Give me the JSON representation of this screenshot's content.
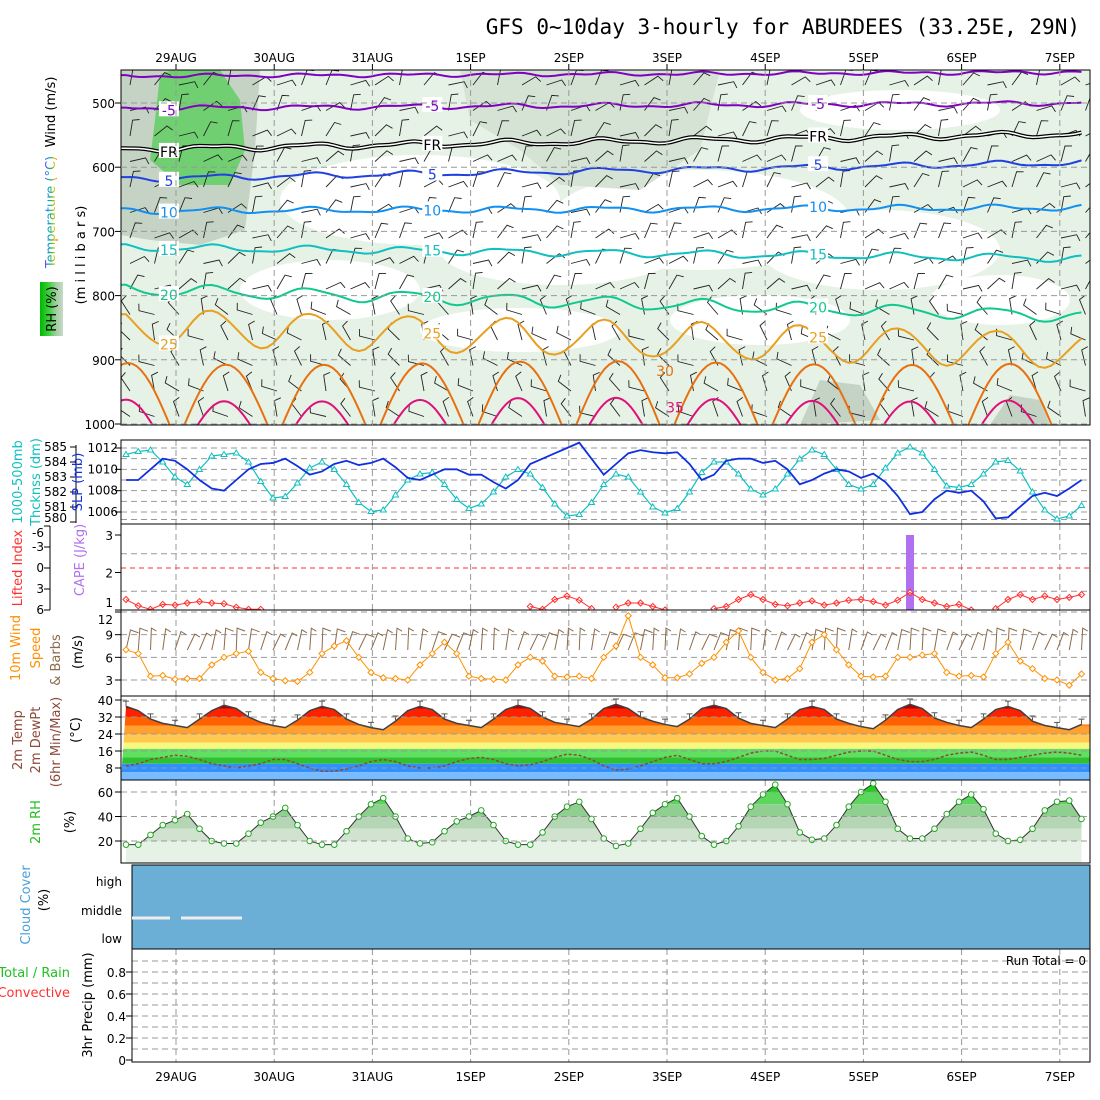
{
  "title": "GFS 0~10day 3-hourly for ABURDEES (33.25E, 29N)",
  "days": [
    "29AUG",
    "30AUG",
    "31AUG",
    "1SEP",
    "2SEP",
    "3SEP",
    "4SEP",
    "5SEP",
    "6SEP",
    "7SEP"
  ],
  "colors": {
    "temp_line": "#404040",
    "dewpoint": "#8b4a3a",
    "rh_marker": "#22aa22",
    "slp": "#1030e0",
    "thickness": "#10c0c0",
    "li": "#ff3030",
    "cape": "#b070f0",
    "wind_speed": "#ff9000",
    "barb": "#8b6b4a",
    "cloud": "#6baed6"
  },
  "upper": {
    "label_wind": "Wind (m/s)",
    "label_temp": "Temperature (°C)",
    "label_mb": "(m i l l i b a r s)",
    "label_rh": "RH (%)",
    "ticks": [
      "500",
      "600",
      "700",
      "800",
      "900",
      "1000"
    ]
  },
  "slp_panel": {
    "label_thick1": "1000-500mb",
    "label_thick2": "Thcknss (dm)",
    "label_slp": "SLP (mb)",
    "thick_ticks": [
      "585",
      "584",
      "583",
      "582",
      "581",
      "580"
    ],
    "slp_ticks": [
      "1012",
      "1010",
      "1008",
      "1006"
    ]
  },
  "cape_panel": {
    "label_li": "Lifted Index",
    "label_cape": "CAPE (J/kg)",
    "li_ticks": [
      "-6",
      "-3",
      "0",
      "3",
      "6"
    ],
    "cape_ticks": [
      "3",
      "2",
      "1"
    ]
  },
  "wind_panel": {
    "label1": "10m Wind",
    "label2": "Speed",
    "label3": "& Barbs",
    "label4": "(m/s)",
    "ticks": [
      "12",
      "9",
      "6",
      "3"
    ]
  },
  "temp_panel": {
    "label1": "2m Temp",
    "label2": "2m DewPt",
    "label3": "(6hr Min/Max)",
    "label4": "(°C)",
    "ticks": [
      "40",
      "32",
      "24",
      "16",
      "8"
    ]
  },
  "rh_panel": {
    "label1": "2m RH",
    "label2": "(%)",
    "ticks": [
      "60",
      "40",
      "20"
    ]
  },
  "cloud_panel": {
    "label1": "Cloud Cover",
    "label2": "(%)",
    "levels": [
      "high",
      "middle",
      "low"
    ]
  },
  "precip_panel": {
    "label_total": "Total / Rain",
    "label_conv": "Convective",
    "label_axis": "3hr Precip (mm)",
    "run_total": "Run Total = 0",
    "ticks": [
      "0.8",
      "0.6",
      "0.4",
      "0.2",
      "0"
    ]
  },
  "chart_data": {
    "type": "line",
    "title": "GFS 0~10day 3-hourly for ABURDEES (33.25E, 29N)",
    "x_start": "28AUG 12Z",
    "x_step_hours": 3,
    "contours": [
      {
        "label": "",
        "level": [
          458,
          452
        ],
        "color": "#8000c0",
        "amp": 2
      },
      {
        "label": "-5",
        "level": [
          508,
          500
        ],
        "color": "#8000c0",
        "amp": 3
      },
      {
        "label": "FR",
        "level": [
          572,
          548
        ],
        "color": "#000000",
        "amp": 4,
        "double": true
      },
      {
        "label": "5",
        "level": [
          618,
          593
        ],
        "color": "#2040e0",
        "amp": 4
      },
      {
        "label": "10",
        "level": [
          668,
          663
        ],
        "color": "#1090f0",
        "amp": 4
      },
      {
        "label": "15",
        "level": [
          725,
          742
        ],
        "color": "#10c0c0",
        "amp": 5
      },
      {
        "label": "20",
        "level": [
          790,
          832
        ],
        "color": "#10c890",
        "amp": 9
      },
      {
        "label": "25",
        "level": [
          848,
          885
        ],
        "color": "#e8a020",
        "amp": 28
      }
    ],
    "arches": [
      {
        "label": "30",
        "peak": 905,
        "color": "#e87010"
      },
      {
        "label": "35",
        "peak": 962,
        "color": "#e0107a"
      }
    ],
    "slp": [
      1009,
      1009,
      1010,
      1011,
      1010.8,
      1010,
      1009,
      1008.2,
      1008,
      1009,
      1010,
      1010.5,
      1010.6,
      1011,
      1010.3,
      1009.5,
      1009.8,
      1010.5,
      1010.8,
      1010.4,
      1010.6,
      1011,
      1010.2,
      1009.2,
      1009,
      1009.5,
      1010,
      1010,
      1009.5,
      1009.5,
      1008.8,
      1008.2,
      1009,
      1010.5,
      1011,
      1011.5,
      1012,
      1012.5,
      1011,
      1009.5,
      1010.5,
      1011.5,
      1011.8,
      1011.6,
      1011.5,
      1011.6,
      1010.5,
      1009,
      1009.5,
      1010.8,
      1011,
      1011,
      1010.6,
      1010.8,
      1010,
      1008.6,
      1009,
      1009.6,
      1010,
      1009.8,
      1009.2,
      1009.6,
      1008.8,
      1007.5,
      1005.8,
      1006,
      1007.2,
      1008,
      1007.8,
      1008,
      1007,
      1005.4,
      1005.5,
      1006.5,
      1007.5,
      1007.8,
      1007.5,
      1008.2,
      1009
    ],
    "thickness": [
      584.5,
      584.7,
      584.8,
      584,
      583,
      582.5,
      583.5,
      584.4,
      584.5,
      584.6,
      584,
      582.7,
      581.6,
      581.7,
      582.6,
      583.6,
      584,
      583.5,
      582.5,
      581.3,
      580.7,
      580.8,
      581.8,
      582.8,
      583.2,
      583.3,
      582.5,
      581.5,
      580.9,
      581.2,
      582,
      583,
      583.5,
      583.2,
      582.3,
      581.2,
      580.4,
      580.5,
      581.3,
      582.5,
      583.2,
      583,
      582,
      581,
      580.6,
      580.9,
      582,
      583.3,
      584,
      584,
      583.2,
      582.2,
      581.8,
      582.2,
      583.2,
      584.2,
      584.8,
      584.5,
      583.5,
      582.5,
      582.2,
      582.5,
      583.6,
      584.6,
      585,
      584.6,
      583.5,
      582.4,
      582.3,
      582.5,
      583.2,
      584,
      584.1,
      583.4,
      582,
      580.8,
      580.2,
      580.4,
      581.1
    ],
    "lifted_index": [
      4.5,
      5.4,
      5.9,
      5.2,
      5.3,
      5,
      4.8,
      5,
      5.1,
      5.6,
      5.9,
      5.9,
      null,
      null,
      null,
      null,
      null,
      null,
      null,
      null,
      null,
      null,
      null,
      null,
      null,
      null,
      null,
      null,
      null,
      null,
      null,
      null,
      null,
      5.5,
      5.9,
      4.5,
      4,
      4.6,
      5.8,
      null,
      5.6,
      5,
      5,
      5.5,
      6,
      null,
      null,
      null,
      5.8,
      5.5,
      4.5,
      3.8,
      4.5,
      5.2,
      5.4,
      5,
      4.7,
      5.3,
      5,
      4.6,
      4.5,
      4.8,
      5.3,
      4.6,
      3.5,
      4.5,
      5,
      5.5,
      5.2,
      6,
      null,
      5.8,
      4.5,
      3.8,
      4.5,
      4,
      4.5,
      4.2,
      3.8
    ],
    "cape": [
      {
        "index": 64,
        "value": 3
      }
    ],
    "wind_speed": [
      7,
      6.5,
      3.5,
      3.6,
      3.1,
      3.2,
      3.2,
      5,
      6,
      6.5,
      6.8,
      4,
      3.2,
      2.9,
      2.8,
      4,
      6.5,
      7.5,
      8.2,
      6,
      4,
      3.3,
      3.2,
      3,
      5,
      6.5,
      8,
      6.5,
      3.5,
      3.2,
      3.1,
      3,
      5,
      6,
      5.5,
      3.5,
      3.4,
      3.5,
      3.2,
      6,
      7.5,
      11.5,
      6,
      5,
      3.3,
      3.3,
      3.8,
      5.2,
      6,
      8,
      9.5,
      6,
      4,
      3,
      3.2,
      4.5,
      8,
      9,
      7,
      5,
      3.5,
      3.4,
      3.5,
      6,
      6,
      6.3,
      6.5,
      4,
      3.5,
      3.6,
      3.4,
      6.5,
      8,
      5.5,
      4.5,
      3.2,
      3,
      2.3,
      3.8
    ],
    "temp_2m": [
      37,
      35,
      31,
      29,
      28,
      27,
      31,
      35,
      37.5,
      36,
      32,
      29.5,
      28,
      27,
      30.5,
      35,
      37,
      35.5,
      31,
      28.5,
      27,
      26,
      30,
      35,
      37,
      35.5,
      31,
      29,
      28,
      27,
      31,
      35.5,
      37.5,
      36,
      32,
      29.5,
      28.5,
      27.5,
      31,
      36,
      38,
      36,
      32,
      30,
      28.5,
      27.5,
      31,
      36,
      37.5,
      36,
      31.5,
      29,
      28,
      27,
      31,
      35.5,
      37,
      35.5,
      31,
      29,
      27.5,
      26.5,
      30.5,
      35.5,
      38,
      36,
      31.5,
      29.5,
      28,
      27,
      31,
      35.5,
      37,
      35,
      30,
      28,
      27,
      26,
      28.5
    ],
    "dewpoint_2m": [
      9,
      10,
      12,
      13,
      14,
      13.5,
      12,
      10,
      9,
      8,
      9,
      10,
      12,
      12,
      10,
      8,
      6.5,
      6.5,
      7.5,
      9,
      11,
      12,
      11,
      9,
      8,
      8,
      9,
      11,
      12.5,
      13,
      12,
      10,
      9,
      9.5,
      11,
      13,
      14.5,
      14,
      12,
      9,
      7,
      7.5,
      9,
      11,
      13,
      14,
      12,
      10,
      10,
      11,
      13,
      15,
      16,
      16,
      14,
      12,
      12,
      12.5,
      14,
      15.5,
      16,
      16,
      14,
      12,
      11,
      11,
      12,
      14,
      15,
      15.5,
      14,
      12,
      12,
      13,
      14,
      15,
      15.5,
      15,
      14
    ],
    "rh_2m": [
      17,
      17,
      25,
      33,
      37,
      42,
      30,
      20,
      18,
      18,
      26,
      35,
      40,
      47,
      33,
      20,
      17,
      17,
      28,
      40,
      50,
      55,
      40,
      22,
      18,
      19,
      28,
      36,
      40,
      45,
      33,
      20,
      17,
      17,
      27,
      40,
      48,
      52,
      38,
      22,
      16,
      18,
      30,
      43,
      50,
      55,
      40,
      24,
      17,
      20,
      32,
      48,
      58,
      66,
      50,
      27,
      21,
      22,
      33,
      48,
      60,
      67,
      52,
      30,
      22,
      22,
      30,
      42,
      52,
      58,
      46,
      26,
      20,
      21,
      30,
      45,
      52,
      53,
      38
    ],
    "precip_total": 0
  }
}
